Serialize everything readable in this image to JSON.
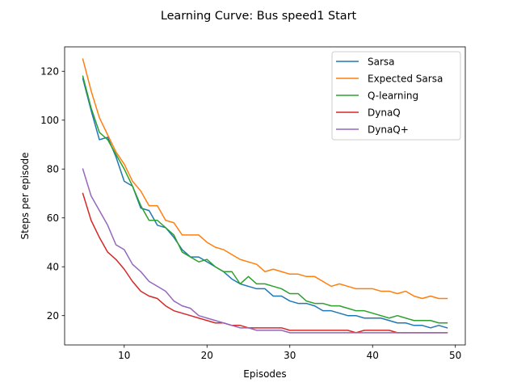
{
  "chart_data": {
    "type": "line",
    "title": "Learning Curve: Bus speed1 Start",
    "xlabel": "Episodes",
    "ylabel": "Steps per episode",
    "xlim": [
      2.8,
      51.2
    ],
    "ylim": [
      8,
      130
    ],
    "xticks": [
      10,
      20,
      30,
      40,
      50
    ],
    "yticks": [
      20,
      40,
      60,
      80,
      100,
      120
    ],
    "grid": false,
    "legend_position": "top-right",
    "x": [
      5,
      6,
      7,
      8,
      9,
      10,
      11,
      12,
      13,
      14,
      15,
      16,
      17,
      18,
      19,
      20,
      21,
      22,
      23,
      24,
      25,
      26,
      27,
      28,
      29,
      30,
      31,
      32,
      33,
      34,
      35,
      36,
      37,
      38,
      39,
      40,
      41,
      42,
      43,
      44,
      45,
      46,
      47,
      48,
      49
    ],
    "series": [
      {
        "name": "Sarsa",
        "color": "#1f77b4",
        "values": [
          117,
          104,
          92,
          93,
          85,
          75,
          73,
          64,
          63,
          57,
          56,
          52,
          47,
          44,
          44,
          42,
          40,
          38,
          35,
          33,
          32,
          31,
          31,
          28,
          28,
          26,
          25,
          25,
          24,
          22,
          22,
          21,
          20,
          20,
          19,
          19,
          19,
          18,
          17,
          17,
          16,
          16,
          15,
          16,
          15
        ]
      },
      {
        "name": "Expected Sarsa",
        "color": "#ff7f0e",
        "values": [
          125,
          112,
          101,
          94,
          87,
          82,
          75,
          71,
          65,
          65,
          59,
          58,
          53,
          53,
          53,
          50,
          48,
          47,
          45,
          43,
          42,
          41,
          38,
          39,
          38,
          37,
          37,
          36,
          36,
          34,
          32,
          33,
          32,
          31,
          31,
          31,
          30,
          30,
          29,
          30,
          28,
          27,
          28,
          27,
          27
        ]
      },
      {
        "name": "Q-learning",
        "color": "#2ca02c",
        "values": [
          118,
          105,
          95,
          92,
          86,
          80,
          73,
          65,
          59,
          59,
          56,
          53,
          46,
          44,
          42,
          43,
          40,
          38,
          38,
          33,
          36,
          33,
          33,
          32,
          31,
          29,
          29,
          26,
          25,
          25,
          24,
          24,
          23,
          22,
          22,
          21,
          20,
          19,
          20,
          19,
          18,
          18,
          18,
          17,
          17
        ]
      },
      {
        "name": "DynaQ",
        "color": "#d62728",
        "values": [
          70,
          59,
          52,
          46,
          43,
          39,
          34,
          30,
          28,
          27,
          24,
          22,
          21,
          20,
          19,
          18,
          17,
          17,
          16,
          16,
          15,
          15,
          15,
          15,
          15,
          14,
          14,
          14,
          14,
          14,
          14,
          14,
          14,
          13,
          14,
          14,
          14,
          14,
          13,
          13,
          13,
          13,
          13,
          13,
          13
        ]
      },
      {
        "name": "DynaQ+",
        "color": "#9467bd",
        "values": [
          80,
          69,
          63,
          57,
          49,
          47,
          41,
          38,
          34,
          32,
          30,
          26,
          24,
          23,
          20,
          19,
          18,
          17,
          16,
          15,
          15,
          14,
          14,
          14,
          14,
          13,
          13,
          13,
          13,
          13,
          13,
          13,
          13,
          13,
          13,
          13,
          13,
          13,
          13,
          13,
          13,
          13,
          13,
          13,
          13
        ]
      }
    ]
  }
}
